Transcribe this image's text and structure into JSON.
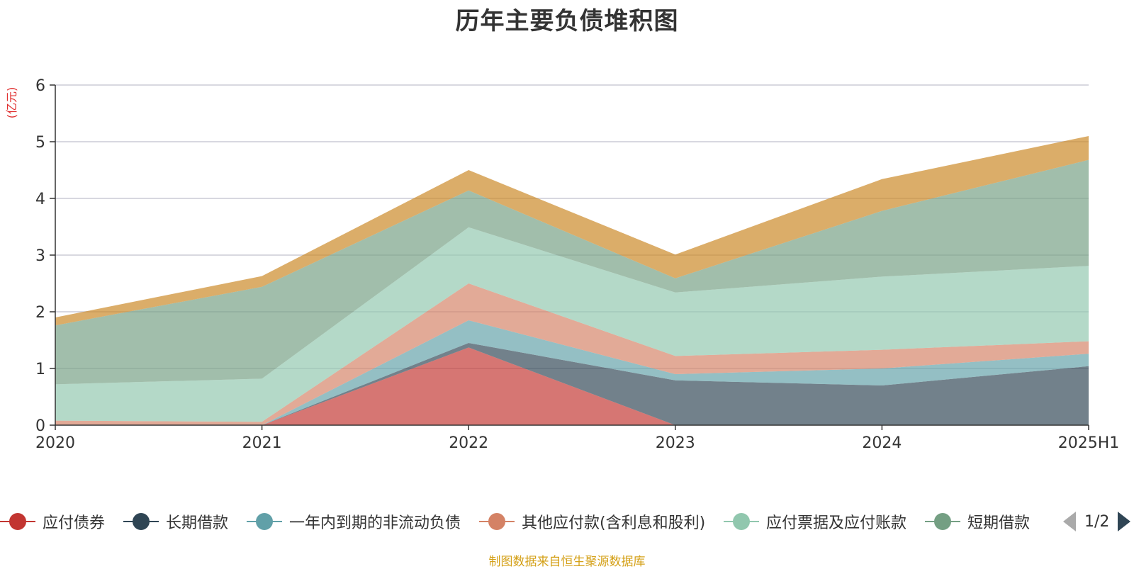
{
  "chart_data": {
    "type": "area",
    "stacked": true,
    "title": "历年主要负债堆积图",
    "ylabel": "(亿元)",
    "xlabel": "",
    "categories": [
      "2020",
      "2021",
      "2022",
      "2023",
      "2024",
      "2025H1"
    ],
    "ylim": [
      0,
      6
    ],
    "yticks": [
      0,
      1,
      2,
      3,
      4,
      5,
      6
    ],
    "grid": true,
    "series": [
      {
        "name": "应付债券",
        "color": "#c23531",
        "values": [
          0,
          0,
          1.37,
          0,
          0,
          0
        ]
      },
      {
        "name": "长期借款",
        "color": "#2f4554",
        "values": [
          0,
          0,
          0.08,
          0.79,
          0.7,
          1.04
        ]
      },
      {
        "name": "一年内到期的非流动负债",
        "color": "#61a0a8",
        "values": [
          0,
          0,
          0.4,
          0.11,
          0.3,
          0.22
        ]
      },
      {
        "name": "其他应付款(含利息和股利)",
        "color": "#d48265",
        "values": [
          0.08,
          0.06,
          0.65,
          0.32,
          0.33,
          0.22
        ]
      },
      {
        "name": "应付票据及应付账款",
        "color": "#91c7ae",
        "values": [
          0.64,
          0.76,
          0.99,
          1.12,
          1.29,
          1.33
        ]
      },
      {
        "name": "短期借款",
        "color": "#749f83",
        "values": [
          1.04,
          1.62,
          0.65,
          0.25,
          1.16,
          1.87
        ]
      },
      {
        "name": "",
        "color": "#ca8622",
        "values": [
          0.14,
          0.19,
          0.36,
          0.42,
          0.56,
          0.42
        ]
      }
    ]
  },
  "legend": {
    "items": [
      {
        "label": "应付债券",
        "color": "#c23531"
      },
      {
        "label": "长期借款",
        "color": "#2f4554"
      },
      {
        "label": "一年内到期的非流动负债",
        "color": "#61a0a8"
      },
      {
        "label": "其他应付款(含利息和股利)",
        "color": "#d48265"
      },
      {
        "label": "应付票据及应付账款",
        "color": "#91c7ae"
      },
      {
        "label": "短期借款",
        "color": "#749f83"
      }
    ],
    "page_text": "1/2"
  },
  "source_note": "制图数据来自恒生聚源数据库"
}
